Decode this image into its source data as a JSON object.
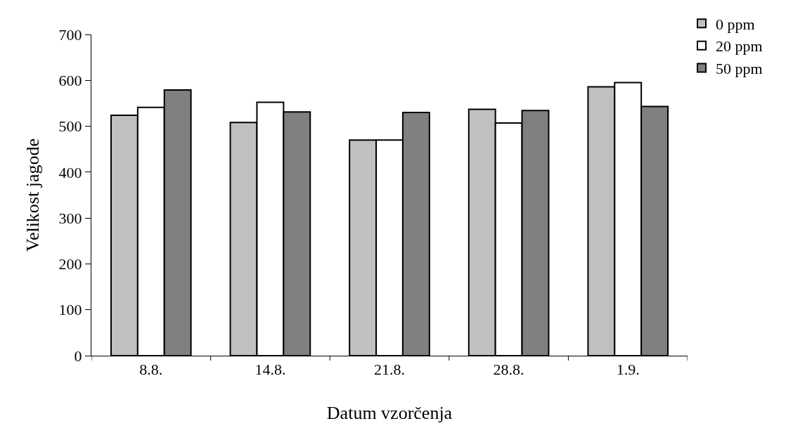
{
  "chart_data": {
    "type": "bar",
    "xlabel": "Datum vzorčenja",
    "ylabel": "Velikost jagode",
    "categories": [
      "8.8.",
      "14.8.",
      "21.8.",
      "28.8.",
      "1.9."
    ],
    "series": [
      {
        "name": "0 ppm",
        "color": "#c0c0c0",
        "values": [
          524,
          508,
          470,
          537,
          586
        ]
      },
      {
        "name": "20 ppm",
        "color": "#ffffff",
        "values": [
          541,
          552,
          470,
          507,
          595
        ]
      },
      {
        "name": "50 ppm",
        "color": "#808080",
        "values": [
          579,
          531,
          530,
          534,
          543
        ]
      }
    ],
    "ylim": [
      0,
      700
    ],
    "yticks": [
      0,
      100,
      200,
      300,
      400,
      500,
      600,
      700
    ],
    "grid": false,
    "legend": "top right"
  }
}
